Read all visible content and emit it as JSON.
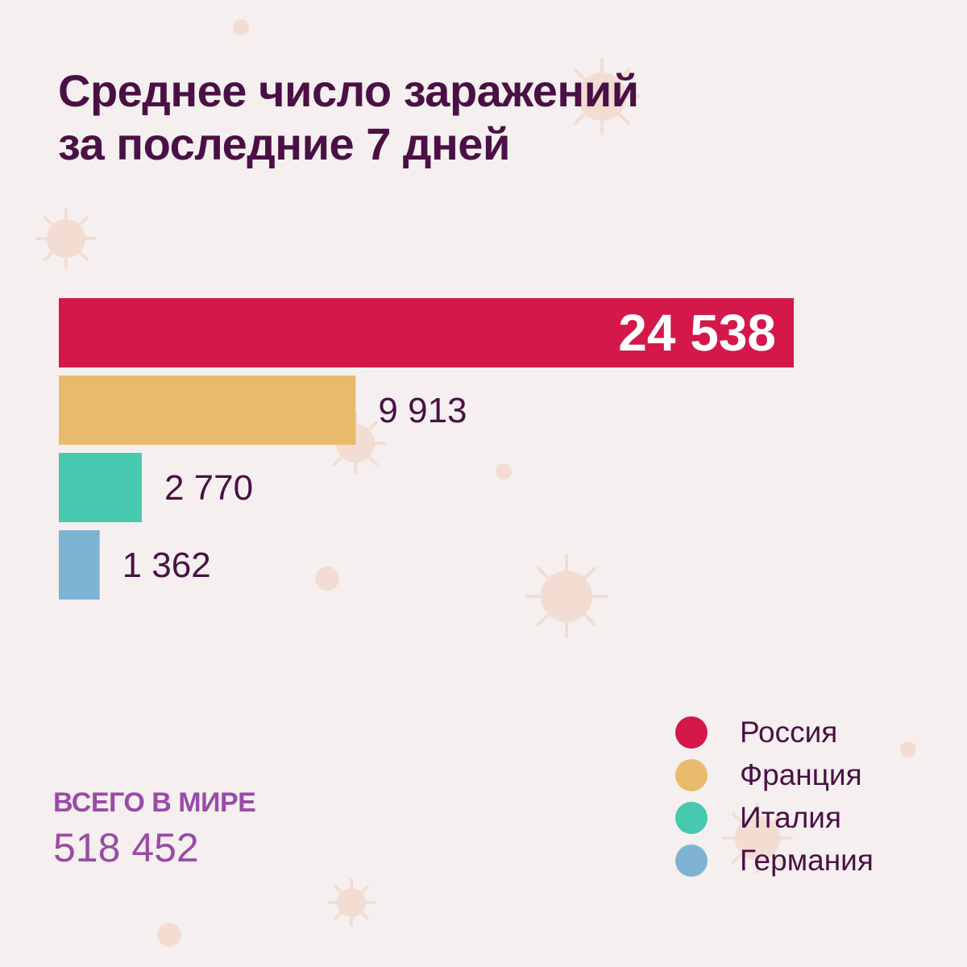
{
  "title_lines": [
    "Среднее число заражений",
    "за последние 7 дней"
  ],
  "total": {
    "label": "ВСЕГО  В МИРЕ",
    "value": "518 452"
  },
  "legend": [
    {
      "label": "Россия",
      "color": "#d4184a"
    },
    {
      "label": "Франция",
      "color": "#e8bb6c"
    },
    {
      "label": "Италия",
      "color": "#46c9ae"
    },
    {
      "label": "Германия",
      "color": "#7eb3d3"
    }
  ],
  "colors": {
    "background": "#f5f0ef",
    "title": "#4a1045",
    "accent": "#9a4aa8",
    "decor": "#f3ddd3"
  },
  "chart_data": {
    "type": "bar",
    "orientation": "horizontal",
    "categories": [
      "Россия",
      "Франция",
      "Италия",
      "Германия"
    ],
    "values": [
      24538,
      9913,
      2770,
      1362
    ],
    "value_labels": [
      "24 538",
      "9 913",
      "2 770",
      "1 362"
    ],
    "colors": [
      "#d4184a",
      "#e8bb6c",
      "#46c9ae",
      "#7eb3d3"
    ],
    "title": "Среднее число заражений за последние 7 дней",
    "xlabel": "",
    "ylabel": "",
    "grid": false,
    "legend_position": "bottom-right"
  }
}
